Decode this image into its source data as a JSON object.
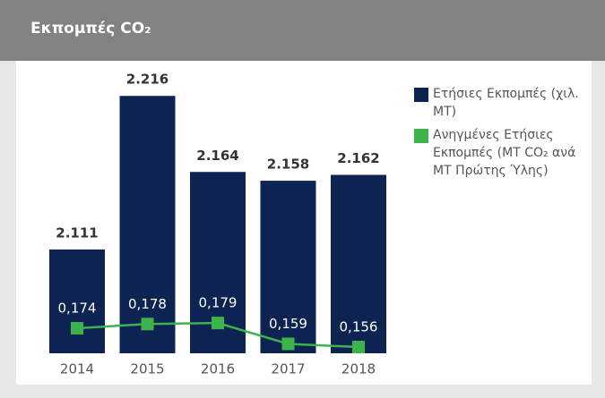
{
  "chart_data": {
    "type": "bar",
    "title": "Εκπομπές CO₂",
    "categories": [
      "2014",
      "2015",
      "2016",
      "2017",
      "2018"
    ],
    "series": [
      {
        "name": "Ετήσιες Εκπομπές (χιλ. MT)",
        "color": "#0d2452",
        "type": "bar",
        "values": [
          2111,
          2216,
          2164,
          2158,
          2162
        ],
        "value_labels": [
          "2.111",
          "2.216",
          "2.164",
          "2.158",
          "2.162"
        ]
      },
      {
        "name": "Ανηγμένες Ετήσιες Εκπομπές (MT CO₂ ανά MT Πρώτης Ύλης)",
        "color": "#3cb44b",
        "type": "line",
        "axis": "y2",
        "values": [
          0.174,
          0.178,
          0.179,
          0.159,
          0.156
        ],
        "value_labels": [
          "0,174",
          "0,178",
          "0,179",
          "0,159",
          "0,156"
        ]
      }
    ],
    "ylim": [
      2040,
      2240
    ],
    "y2lim": [
      0.15,
      0.43
    ],
    "legend": "right"
  }
}
